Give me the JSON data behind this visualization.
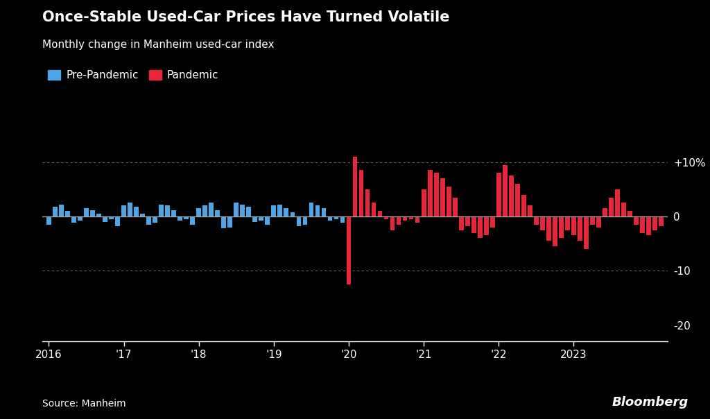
{
  "title": "Once-Stable Used-Car Prices Have Turned Volatile",
  "subtitle": "Monthly change in Manheim used-car index",
  "source": "Source: Manheim",
  "bloomberg": "Bloomberg",
  "background_color": "#000000",
  "text_color": "#ffffff",
  "bar_color_pre": "#4da6e8",
  "bar_color_pandemic": "#e8263a",
  "zero_line_color": "#aaaaaa",
  "yticks": [
    10,
    0,
    -10,
    -20
  ],
  "ytick_labels": [
    "+10%",
    "0",
    "-10",
    "-20"
  ],
  "ylim": [
    -23,
    14
  ],
  "xtick_labels": [
    "2016",
    "'17",
    "'18",
    "'19",
    "'20",
    "'21",
    "'22",
    "2023"
  ],
  "xtick_positions": [
    0,
    12,
    24,
    36,
    48,
    60,
    72,
    84
  ],
  "pandemic_start_index": 48,
  "values": [
    -1.5,
    1.8,
    2.2,
    1.0,
    -1.2,
    -0.8,
    1.5,
    1.2,
    0.5,
    -1.0,
    -0.5,
    -1.8,
    2.0,
    2.5,
    1.8,
    0.5,
    -1.5,
    -1.2,
    2.2,
    2.0,
    1.2,
    -0.8,
    -0.5,
    -1.5,
    1.5,
    2.0,
    2.5,
    1.2,
    -2.2,
    -2.0,
    2.5,
    2.2,
    1.8,
    -1.0,
    -0.8,
    -1.5,
    2.0,
    2.2,
    1.5,
    0.8,
    -1.8,
    -1.5,
    2.5,
    2.0,
    1.5,
    -0.8,
    -0.5,
    -1.2,
    -12.5,
    11.0,
    8.5,
    5.0,
    2.5,
    1.0,
    -0.5,
    -2.5,
    -1.5,
    -0.8,
    -0.5,
    -1.2,
    5.0,
    8.5,
    8.0,
    7.0,
    5.5,
    3.5,
    -2.5,
    -1.8,
    -3.0,
    -4.0,
    -3.5,
    -2.0,
    8.0,
    9.5,
    7.5,
    6.0,
    4.0,
    2.0,
    -1.5,
    -2.5,
    -4.5,
    -5.5,
    -4.0,
    -2.5,
    -3.5,
    -4.5,
    -6.0,
    -1.5,
    -2.0,
    1.5,
    3.5,
    5.0,
    2.5,
    1.0,
    -1.5,
    -3.0,
    -3.5,
    -2.5,
    -1.8
  ],
  "title_fontsize": 15,
  "subtitle_fontsize": 11,
  "legend_fontsize": 11,
  "tick_fontsize": 11,
  "source_fontsize": 10,
  "bloomberg_fontsize": 13
}
